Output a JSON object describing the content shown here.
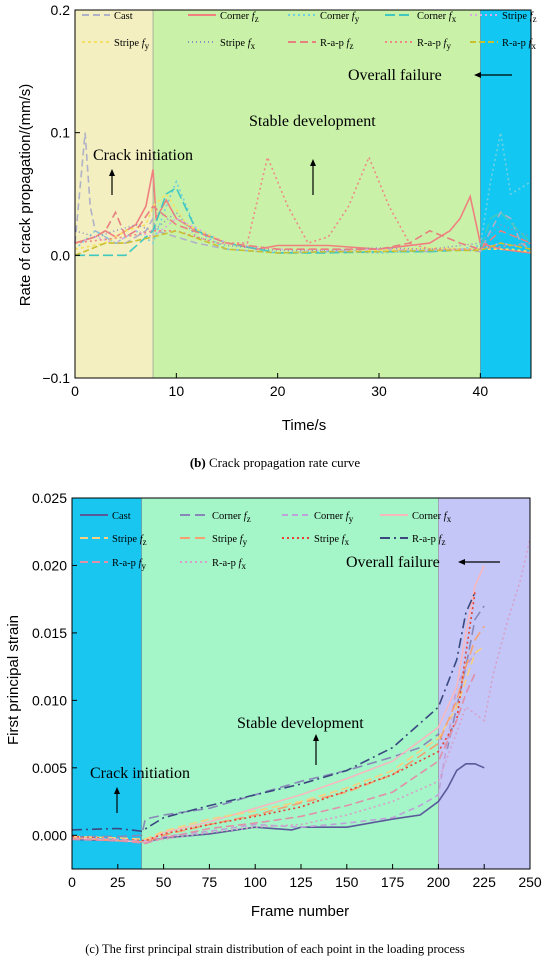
{
  "colors": {
    "zone_initiation_top": "#f3efc0",
    "zone_stable_top": "#c9f2a8",
    "zone_failure_top": "#12c8f2",
    "zone_initiation_bottom": "#18c6f0",
    "zone_stable_bottom": "#a4f5c8",
    "zone_failure_bottom": "#c3c6f6"
  },
  "chart_data": [
    {
      "type": "line",
      "caption_letter": "(b)",
      "caption_text": " Crack propagation rate curve",
      "xlabel": "Time/s",
      "ylabel": "Rate of crack propagation/(mm/s)",
      "xlim": [
        0,
        45
      ],
      "ylim": [
        -0.1,
        0.2
      ],
      "xticks": [
        "0",
        "10",
        "20",
        "30",
        "40"
      ],
      "yticks": [
        "−0.1",
        "0.0",
        "0.1",
        "0.2"
      ],
      "xtick_values": [
        0,
        10,
        20,
        30,
        40
      ],
      "ytick_values": [
        -0.1,
        0.0,
        0.1,
        0.2
      ],
      "zones": [
        {
          "from": 0,
          "to": 7.7,
          "color_key": "zone_initiation_top"
        },
        {
          "from": 7.7,
          "to": 40,
          "color_key": "zone_stable_top"
        },
        {
          "from": 40,
          "to": 45,
          "color_key": "zone_failure_top"
        }
      ],
      "annotations": {
        "crack_initiation": "Crack initiation",
        "stable_development": "Stable development",
        "overall_failure": "Overall failure"
      },
      "legend": [
        {
          "base": "Cast",
          "sub": ""
        },
        {
          "base": "Corner ",
          "ital": "f",
          "sub": "z"
        },
        {
          "base": "Corner ",
          "ital": "f",
          "sub": "y"
        },
        {
          "base": "Corner ",
          "ital": "f",
          "sub": "x"
        },
        {
          "base": "Stripe ",
          "ital": "f",
          "sub": "z"
        },
        {
          "base": "Stripe ",
          "ital": "f",
          "sub": "y"
        },
        {
          "base": "Stripe ",
          "ital": "f",
          "sub": "x"
        },
        {
          "base": "R-a-p ",
          "ital": "f",
          "sub": "z"
        },
        {
          "base": "R-a-p ",
          "ital": "f",
          "sub": "y"
        },
        {
          "base": "R-a-p ",
          "ital": "f",
          "sub": "x"
        }
      ],
      "series": [
        {
          "color": "#b0b0c8",
          "dash": "7,4",
          "x": [
            0,
            1,
            1.5,
            2,
            3,
            4,
            5,
            6,
            7,
            7.7,
            8,
            10,
            12,
            15,
            20,
            25,
            30,
            35,
            38,
            40,
            41,
            42,
            43,
            44,
            45
          ],
          "y": [
            0.01,
            0.1,
            0.04,
            0.02,
            0.015,
            0.01,
            0.01,
            0.015,
            0.02,
            0.03,
            0.02,
            0.015,
            0.01,
            0.005,
            0.002,
            0.003,
            0.005,
            0.003,
            0.005,
            0.003,
            0.02,
            0.035,
            0.03,
            0.01,
            0.005
          ]
        },
        {
          "color": "#f08080",
          "dash": "",
          "x": [
            0,
            2,
            3,
            4,
            5,
            6,
            7,
            7.7,
            8,
            9,
            10,
            12,
            15,
            18,
            20,
            25,
            30,
            35,
            37,
            38,
            39,
            40,
            42,
            45
          ],
          "y": [
            0.01,
            0.015,
            0.02,
            0.015,
            0.02,
            0.025,
            0.04,
            0.07,
            0.03,
            0.045,
            0.03,
            0.02,
            0.01,
            0.005,
            0.008,
            0.008,
            0.005,
            0.01,
            0.02,
            0.03,
            0.048,
            0.01,
            0.005,
            0.002
          ]
        },
        {
          "color": "#70d0e0",
          "dash": "2,3",
          "x": [
            0,
            2,
            4,
            6,
            7.7,
            9,
            10,
            12,
            15,
            20,
            25,
            30,
            35,
            38,
            40,
            41,
            42,
            43,
            44,
            45
          ],
          "y": [
            0.005,
            0.02,
            0.01,
            0.02,
            0.01,
            0.04,
            0.06,
            0.02,
            0.005,
            0.002,
            0.003,
            0.002,
            0.004,
            0.005,
            0.008,
            0.06,
            0.1,
            0.05,
            0.055,
            0.06
          ]
        },
        {
          "color": "#40c8c0",
          "dash": "10,4",
          "x": [
            0,
            3,
            5,
            7.7,
            9,
            10,
            12,
            15,
            20,
            25,
            30,
            35,
            40,
            41,
            42,
            45
          ],
          "y": [
            0.0,
            0.0,
            0.0,
            0.02,
            0.05,
            0.055,
            0.02,
            0.01,
            0.002,
            0.002,
            0.003,
            0.003,
            0.005,
            0.03,
            0.035,
            0.01
          ]
        },
        {
          "color": "#d8a8e8",
          "dash": "2,3",
          "x": [
            0,
            2,
            4,
            6,
            7.7,
            10,
            15,
            20,
            25,
            30,
            35,
            40,
            42,
            45
          ],
          "y": [
            0.01,
            0.015,
            0.01,
            0.02,
            0.015,
            0.03,
            0.01,
            0.005,
            0.004,
            0.005,
            0.004,
            0.005,
            0.01,
            0.005
          ]
        },
        {
          "color": "#f5e060",
          "dash": "3,3",
          "x": [
            0,
            3,
            5,
            7,
            7.7,
            9,
            11,
            15,
            20,
            25,
            30,
            35,
            40,
            43,
            45
          ],
          "y": [
            0.005,
            0.01,
            0.02,
            0.025,
            0.04,
            0.05,
            0.025,
            0.01,
            0.005,
            0.005,
            0.004,
            0.006,
            0.005,
            0.005,
            0.003
          ]
        },
        {
          "color": "#9090c0",
          "dash": "1,3",
          "x": [
            0,
            2,
            4,
            6,
            7.7,
            10,
            12,
            15,
            20,
            25,
            30,
            35,
            40,
            42,
            45
          ],
          "y": [
            0.02,
            0.015,
            0.02,
            0.025,
            0.02,
            0.035,
            0.015,
            0.008,
            0.004,
            0.004,
            0.006,
            0.005,
            0.01,
            0.025,
            0.015
          ]
        },
        {
          "color": "#e88080",
          "dash": "8,4",
          "x": [
            0,
            2,
            3,
            4,
            5,
            6,
            7.7,
            10,
            15,
            20,
            25,
            30,
            33,
            35,
            38,
            40,
            42,
            45
          ],
          "y": [
            0.01,
            0.015,
            0.02,
            0.035,
            0.015,
            0.02,
            0.04,
            0.025,
            0.01,
            0.005,
            0.005,
            0.005,
            0.01,
            0.02,
            0.01,
            0.005,
            0.02,
            0.01
          ]
        },
        {
          "color": "#f08888",
          "dash": "2,3",
          "x": [
            0,
            5,
            7.7,
            10,
            14,
            17,
            19,
            21,
            23,
            25,
            27,
            29,
            31,
            33,
            35,
            40,
            45
          ],
          "y": [
            0.01,
            0.015,
            0.02,
            0.02,
            0.01,
            0.01,
            0.08,
            0.04,
            0.01,
            0.015,
            0.04,
            0.08,
            0.04,
            0.01,
            0.005,
            0.005,
            0.01
          ]
        },
        {
          "color": "#c8c030",
          "dash": "6,3",
          "x": [
            0,
            3,
            5,
            7.7,
            10,
            15,
            20,
            25,
            30,
            35,
            40,
            42,
            45
          ],
          "y": [
            0.0,
            0.01,
            0.01,
            0.015,
            0.02,
            0.005,
            0.002,
            0.003,
            0.003,
            0.004,
            0.004,
            0.01,
            0.005
          ]
        }
      ]
    },
    {
      "type": "line",
      "caption_text": "(c) The first principal strain distribution of each point in the loading process",
      "xlabel": "Frame number",
      "ylabel": "First principal strain",
      "xlim": [
        0,
        250
      ],
      "ylim": [
        -0.0025,
        0.025
      ],
      "xticks": [
        "0",
        "25",
        "50",
        "75",
        "100",
        "125",
        "150",
        "175",
        "200",
        "225",
        "250"
      ],
      "yticks": [
        "0.000",
        "0.005",
        "0.010",
        "0.015",
        "0.020",
        "0.025"
      ],
      "xtick_values": [
        0,
        25,
        50,
        75,
        100,
        125,
        150,
        175,
        200,
        225,
        250
      ],
      "ytick_values": [
        0,
        0.005,
        0.01,
        0.015,
        0.02,
        0.025
      ],
      "zones": [
        {
          "from": 0,
          "to": 38,
          "color_key": "zone_initiation_bottom"
        },
        {
          "from": 38,
          "to": 200,
          "color_key": "zone_stable_bottom"
        },
        {
          "from": 200,
          "to": 250,
          "color_key": "zone_failure_bottom"
        }
      ],
      "annotations": {
        "crack_initiation": "Crack initiation",
        "stable_development": "Stable development",
        "overall_failure": "Overall failure"
      },
      "legend": [
        {
          "base": "Cast",
          "sub": ""
        },
        {
          "base": "Corner ",
          "ital": "f",
          "sub": "z"
        },
        {
          "base": "Corner ",
          "ital": "f",
          "sub": "y"
        },
        {
          "base": "Corner ",
          "ital": "f",
          "sub": "x"
        },
        {
          "base": "Stripe ",
          "ital": "f",
          "sub": "z"
        },
        {
          "base": "Stripe ",
          "ital": "f",
          "sub": "y"
        },
        {
          "base": "Stripe ",
          "ital": "f",
          "sub": "x"
        },
        {
          "base": "R-a-p ",
          "ital": "f",
          "sub": "z"
        },
        {
          "base": "R-a-p ",
          "ital": "f",
          "sub": "y"
        },
        {
          "base": "R-a-p ",
          "ital": "f",
          "sub": "x"
        }
      ],
      "series": [
        {
          "color": "#5a5a9a",
          "dash": "",
          "x": [
            0,
            25,
            40,
            50,
            75,
            100,
            120,
            125,
            150,
            175,
            190,
            200,
            205,
            210,
            215,
            220,
            225
          ],
          "y": [
            -0.0003,
            -0.0004,
            -0.0005,
            -0.0002,
            0.0001,
            0.0006,
            0.0004,
            0.0006,
            0.0006,
            0.0012,
            0.0015,
            0.0025,
            0.0035,
            0.0048,
            0.0053,
            0.0053,
            0.005
          ]
        },
        {
          "color": "#8888b8",
          "dash": "10,5",
          "x": [
            0,
            25,
            38,
            40,
            50,
            75,
            100,
            125,
            150,
            175,
            190,
            200,
            205,
            210,
            215,
            220,
            225
          ],
          "y": [
            -0.0001,
            -0.0001,
            0.0,
            0.0012,
            0.0015,
            0.002,
            0.003,
            0.004,
            0.0048,
            0.0058,
            0.0065,
            0.0075,
            0.0065,
            0.0095,
            0.0125,
            0.016,
            0.017
          ]
        },
        {
          "color": "#c0a0d8",
          "dash": "6,4",
          "x": [
            0,
            25,
            40,
            50,
            75,
            100,
            125,
            150,
            175,
            190,
            200,
            210,
            215,
            220
          ],
          "y": [
            -0.0002,
            -0.0003,
            -0.0004,
            -0.0001,
            0.0003,
            0.0008,
            0.0006,
            0.0009,
            0.0013,
            0.0022,
            0.003,
            0.011,
            0.0125,
            0.0135
          ]
        },
        {
          "color": "#f8b8c0",
          "dash": "",
          "x": [
            0,
            25,
            40,
            50,
            75,
            100,
            125,
            150,
            175,
            200,
            210,
            215,
            220,
            225
          ],
          "y": [
            -0.0002,
            -0.0004,
            -0.0005,
            0.0002,
            0.001,
            0.002,
            0.003,
            0.0042,
            0.0055,
            0.008,
            0.011,
            0.015,
            0.0185,
            0.02
          ]
        },
        {
          "color": "#f8d080",
          "dash": "8,4",
          "x": [
            0,
            25,
            40,
            50,
            75,
            100,
            125,
            150,
            175,
            200,
            210,
            215,
            220,
            225
          ],
          "y": [
            -0.0001,
            -0.0002,
            -0.0003,
            0.0003,
            0.0012,
            0.0018,
            0.0025,
            0.0035,
            0.0048,
            0.0072,
            0.0095,
            0.0115,
            0.0135,
            0.014
          ]
        },
        {
          "color": "#f8a070",
          "dash": "10,5",
          "x": [
            0,
            25,
            40,
            50,
            75,
            100,
            125,
            150,
            175,
            200,
            210,
            215,
            220,
            225
          ],
          "y": [
            -0.0002,
            -0.0004,
            -0.0005,
            0.0,
            0.0008,
            0.0015,
            0.0024,
            0.0032,
            0.0045,
            0.0068,
            0.01,
            0.0125,
            0.0145,
            0.0155
          ]
        },
        {
          "color": "#e84030",
          "dash": "2,3",
          "x": [
            0,
            25,
            40,
            50,
            75,
            100,
            125,
            150,
            175,
            200,
            210,
            215,
            220
          ],
          "y": [
            -0.0001,
            -0.0003,
            -0.0004,
            0.0001,
            0.0008,
            0.0014,
            0.0021,
            0.0033,
            0.0045,
            0.0062,
            0.0085,
            0.0135,
            0.018
          ]
        },
        {
          "color": "#3a4880",
          "dash": "10,4,2,4",
          "x": [
            0,
            25,
            38,
            50,
            75,
            100,
            125,
            150,
            175,
            200,
            210,
            215,
            220
          ],
          "y": [
            0.0004,
            0.0005,
            0.0003,
            0.0013,
            0.0022,
            0.003,
            0.0038,
            0.0048,
            0.0065,
            0.0095,
            0.013,
            0.0165,
            0.018
          ]
        },
        {
          "color": "#e090a8",
          "dash": "8,4",
          "x": [
            0,
            25,
            40,
            50,
            75,
            100,
            125,
            150,
            175,
            200,
            210,
            215,
            220
          ],
          "y": [
            -0.0003,
            -0.0004,
            -0.0006,
            -0.0002,
            0.0005,
            0.0009,
            0.0014,
            0.0022,
            0.0032,
            0.0055,
            0.0085,
            0.0105,
            0.012
          ]
        },
        {
          "color": "#d8a0c8",
          "dash": "2,3",
          "x": [
            0,
            25,
            40,
            50,
            75,
            100,
            125,
            150,
            175,
            200,
            215,
            225,
            230,
            238,
            245,
            250
          ],
          "y": [
            -0.0002,
            -0.0003,
            -0.0005,
            -0.0003,
            0.0002,
            0.0006,
            0.0008,
            0.0015,
            0.0025,
            0.004,
            0.0095,
            0.0085,
            0.012,
            0.016,
            0.019,
            0.022
          ]
        }
      ]
    }
  ]
}
